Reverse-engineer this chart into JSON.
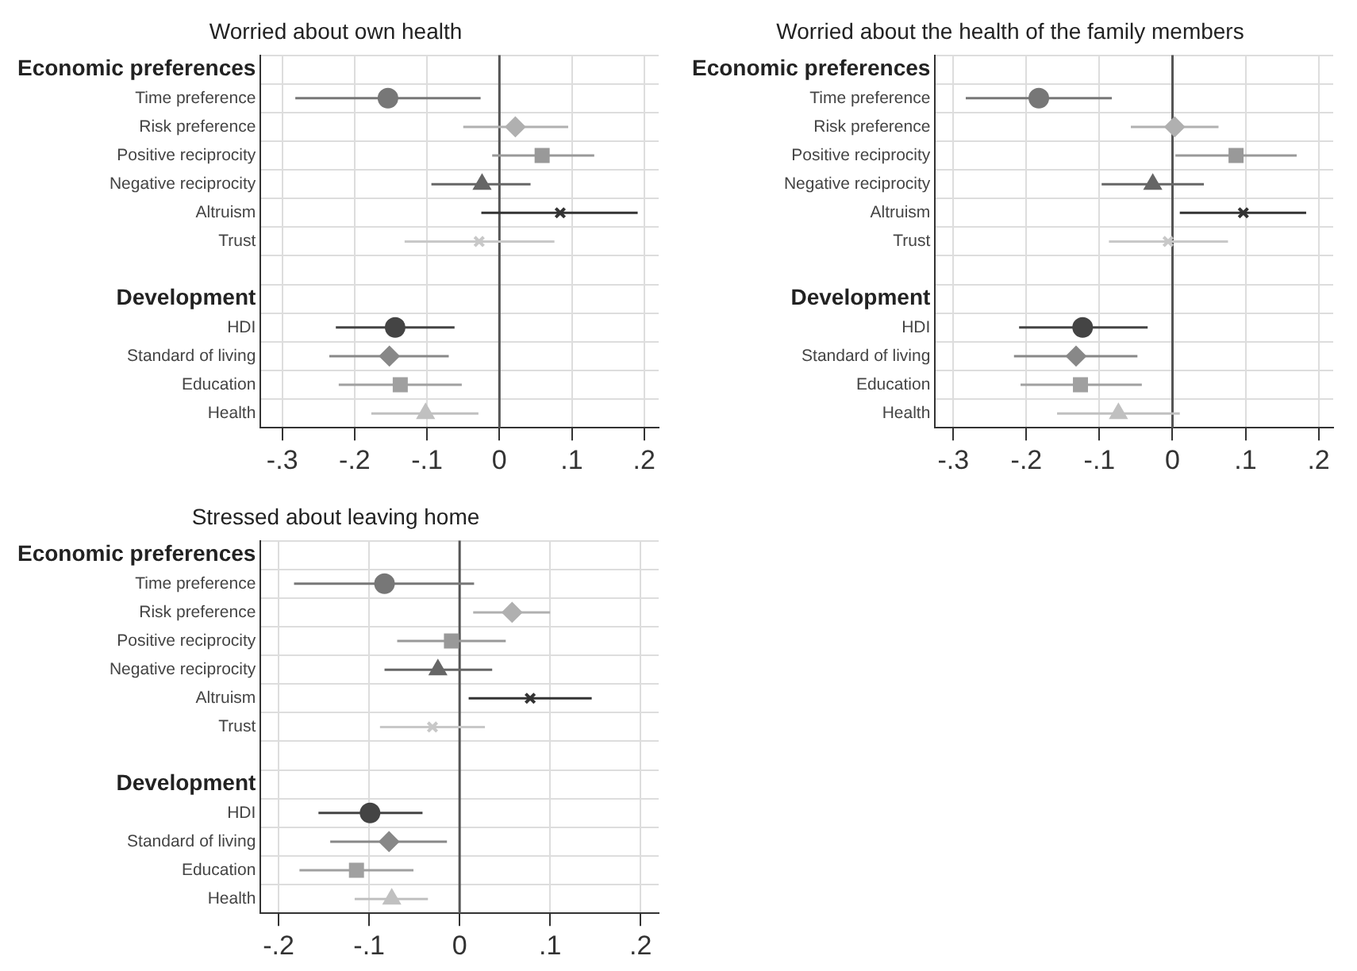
{
  "chart_data": [
    {
      "type": "scatter",
      "title": "Worried about own health",
      "orientation": "horizontal",
      "categories": [
        "Economic preferences",
        "Time preference",
        "Risk preference",
        "Positive reciprocity",
        "Negative reciprocity",
        "Altruism",
        "Trust",
        null,
        "Development",
        "HDI",
        "Standard of living",
        "Education",
        "Health"
      ],
      "xlim": [
        -0.33,
        0.22
      ],
      "xticks": [
        {
          "value": -0.3,
          "label": "-.3"
        },
        {
          "value": -0.2,
          "label": "-.2"
        },
        {
          "value": -0.1,
          "label": "-.1"
        },
        {
          "value": 0,
          "label": "0"
        },
        {
          "value": 0.1,
          "label": ".1"
        },
        {
          "value": 0.2,
          "label": ".2"
        }
      ],
      "grid": true,
      "legend": false,
      "ref_lines": [
        {
          "axis": "x",
          "value": 0,
          "color": "#555555"
        }
      ],
      "series": [
        {
          "color": "#777777",
          "marker": "circle",
          "values": [
            null,
            -0.154,
            null,
            null,
            null,
            null,
            null,
            null,
            null,
            null,
            null,
            null,
            null
          ],
          "errors": [
            null,
            [
              -0.282,
              -0.026
            ],
            null,
            null,
            null,
            null,
            null,
            null,
            null,
            null,
            null,
            null,
            null
          ]
        },
        {
          "color": "#b0b0b0",
          "marker": "diamond",
          "values": [
            null,
            null,
            0.022,
            null,
            null,
            null,
            null,
            null,
            null,
            null,
            null,
            null,
            null
          ],
          "errors": [
            null,
            null,
            [
              -0.05,
              0.095
            ],
            null,
            null,
            null,
            null,
            null,
            null,
            null,
            null,
            null,
            null
          ]
        },
        {
          "color": "#999999",
          "marker": "square",
          "values": [
            null,
            null,
            null,
            0.059,
            null,
            null,
            null,
            null,
            null,
            null,
            null,
            null,
            null
          ],
          "errors": [
            null,
            null,
            null,
            [
              -0.01,
              0.131
            ],
            null,
            null,
            null,
            null,
            null,
            null,
            null,
            null,
            null
          ]
        },
        {
          "color": "#666666",
          "marker": "triangle",
          "values": [
            null,
            null,
            null,
            null,
            -0.024,
            null,
            null,
            null,
            null,
            null,
            null,
            null,
            null
          ],
          "errors": [
            null,
            null,
            null,
            null,
            [
              -0.094,
              0.043
            ],
            null,
            null,
            null,
            null,
            null,
            null,
            null,
            null
          ]
        },
        {
          "color": "#333333",
          "marker": "cross",
          "values": [
            null,
            null,
            null,
            null,
            null,
            0.084,
            null,
            null,
            null,
            null,
            null,
            null,
            null
          ],
          "errors": [
            null,
            null,
            null,
            null,
            null,
            [
              -0.025,
              0.191
            ],
            null,
            null,
            null,
            null,
            null,
            null,
            null
          ]
        },
        {
          "color": "#c8c8c8",
          "marker": "cross",
          "values": [
            null,
            null,
            null,
            null,
            null,
            null,
            -0.028,
            null,
            null,
            null,
            null,
            null,
            null
          ],
          "errors": [
            null,
            null,
            null,
            null,
            null,
            null,
            [
              -0.131,
              0.076
            ],
            null,
            null,
            null,
            null,
            null,
            null
          ]
        },
        {
          "color": "#444444",
          "marker": "circle",
          "values": [
            null,
            null,
            null,
            null,
            null,
            null,
            null,
            null,
            null,
            -0.144,
            null,
            null,
            null
          ],
          "errors": [
            null,
            null,
            null,
            null,
            null,
            null,
            null,
            null,
            null,
            [
              -0.226,
              -0.062
            ],
            null,
            null,
            null
          ]
        },
        {
          "color": "#888888",
          "marker": "diamond",
          "values": [
            null,
            null,
            null,
            null,
            null,
            null,
            null,
            null,
            null,
            null,
            -0.152,
            null,
            null
          ],
          "errors": [
            null,
            null,
            null,
            null,
            null,
            null,
            null,
            null,
            null,
            null,
            [
              -0.235,
              -0.07
            ],
            null,
            null
          ]
        },
        {
          "color": "#a0a0a0",
          "marker": "square",
          "values": [
            null,
            null,
            null,
            null,
            null,
            null,
            null,
            null,
            null,
            null,
            null,
            -0.137,
            null
          ],
          "errors": [
            null,
            null,
            null,
            null,
            null,
            null,
            null,
            null,
            null,
            null,
            null,
            [
              -0.222,
              -0.052
            ],
            null
          ]
        },
        {
          "color": "#c0c0c0",
          "marker": "triangle",
          "values": [
            null,
            null,
            null,
            null,
            null,
            null,
            null,
            null,
            null,
            null,
            null,
            null,
            -0.102
          ],
          "errors": [
            null,
            null,
            null,
            null,
            null,
            null,
            null,
            null,
            null,
            null,
            null,
            null,
            [
              -0.177,
              -0.029
            ]
          ]
        }
      ]
    },
    {
      "type": "scatter",
      "title": "Worried about the health of the family members",
      "orientation": "horizontal",
      "categories": [
        "Economic preferences",
        "Time preference",
        "Risk preference",
        "Positive reciprocity",
        "Negative reciprocity",
        "Altruism",
        "Trust",
        null,
        "Development",
        "HDI",
        "Standard of living",
        "Education",
        "Health"
      ],
      "xlim": [
        -0.325,
        0.22
      ],
      "xticks": [
        {
          "value": -0.3,
          "label": "-.3"
        },
        {
          "value": -0.2,
          "label": "-.2"
        },
        {
          "value": -0.1,
          "label": "-.1"
        },
        {
          "value": 0,
          "label": "0"
        },
        {
          "value": 0.1,
          "label": ".1"
        },
        {
          "value": 0.2,
          "label": ".2"
        }
      ],
      "grid": true,
      "legend": false,
      "ref_lines": [
        {
          "axis": "x",
          "value": 0,
          "color": "#555555"
        }
      ],
      "series": [
        {
          "color": "#777777",
          "marker": "circle",
          "values": [
            null,
            -0.183,
            null,
            null,
            null,
            null,
            null,
            null,
            null,
            null,
            null,
            null,
            null
          ],
          "errors": [
            null,
            [
              -0.283,
              -0.083
            ],
            null,
            null,
            null,
            null,
            null,
            null,
            null,
            null,
            null,
            null,
            null
          ]
        },
        {
          "color": "#b0b0b0",
          "marker": "diamond",
          "values": [
            null,
            null,
            0.003,
            null,
            null,
            null,
            null,
            null,
            null,
            null,
            null,
            null,
            null
          ],
          "errors": [
            null,
            null,
            [
              -0.057,
              0.063
            ],
            null,
            null,
            null,
            null,
            null,
            null,
            null,
            null,
            null,
            null
          ]
        },
        {
          "color": "#999999",
          "marker": "square",
          "values": [
            null,
            null,
            null,
            0.087,
            null,
            null,
            null,
            null,
            null,
            null,
            null,
            null,
            null
          ],
          "errors": [
            null,
            null,
            null,
            [
              0.004,
              0.17
            ],
            null,
            null,
            null,
            null,
            null,
            null,
            null,
            null,
            null
          ]
        },
        {
          "color": "#666666",
          "marker": "triangle",
          "values": [
            null,
            null,
            null,
            null,
            -0.027,
            null,
            null,
            null,
            null,
            null,
            null,
            null,
            null
          ],
          "errors": [
            null,
            null,
            null,
            null,
            [
              -0.097,
              0.043
            ],
            null,
            null,
            null,
            null,
            null,
            null,
            null,
            null
          ]
        },
        {
          "color": "#333333",
          "marker": "cross",
          "values": [
            null,
            null,
            null,
            null,
            null,
            0.097,
            null,
            null,
            null,
            null,
            null,
            null,
            null
          ],
          "errors": [
            null,
            null,
            null,
            null,
            null,
            [
              0.01,
              0.183
            ],
            null,
            null,
            null,
            null,
            null,
            null,
            null
          ]
        },
        {
          "color": "#c8c8c8",
          "marker": "cross",
          "values": [
            null,
            null,
            null,
            null,
            null,
            null,
            -0.006,
            null,
            null,
            null,
            null,
            null,
            null
          ],
          "errors": [
            null,
            null,
            null,
            null,
            null,
            null,
            [
              -0.087,
              0.076
            ],
            null,
            null,
            null,
            null,
            null,
            null
          ]
        },
        {
          "color": "#444444",
          "marker": "circle",
          "values": [
            null,
            null,
            null,
            null,
            null,
            null,
            null,
            null,
            null,
            -0.123,
            null,
            null,
            null
          ],
          "errors": [
            null,
            null,
            null,
            null,
            null,
            null,
            null,
            null,
            null,
            [
              -0.21,
              -0.034
            ],
            null,
            null,
            null
          ]
        },
        {
          "color": "#888888",
          "marker": "diamond",
          "values": [
            null,
            null,
            null,
            null,
            null,
            null,
            null,
            null,
            null,
            null,
            -0.132,
            null,
            null
          ],
          "errors": [
            null,
            null,
            null,
            null,
            null,
            null,
            null,
            null,
            null,
            null,
            [
              -0.217,
              -0.048
            ],
            null,
            null
          ]
        },
        {
          "color": "#a0a0a0",
          "marker": "square",
          "values": [
            null,
            null,
            null,
            null,
            null,
            null,
            null,
            null,
            null,
            null,
            null,
            -0.126,
            null
          ],
          "errors": [
            null,
            null,
            null,
            null,
            null,
            null,
            null,
            null,
            null,
            null,
            null,
            [
              -0.208,
              -0.042
            ],
            null
          ]
        },
        {
          "color": "#c0c0c0",
          "marker": "triangle",
          "values": [
            null,
            null,
            null,
            null,
            null,
            null,
            null,
            null,
            null,
            null,
            null,
            null,
            -0.074
          ],
          "errors": [
            null,
            null,
            null,
            null,
            null,
            null,
            null,
            null,
            null,
            null,
            null,
            null,
            [
              -0.158,
              0.01
            ]
          ]
        }
      ]
    },
    {
      "type": "scatter",
      "title": "Stressed about leaving home",
      "orientation": "horizontal",
      "categories": [
        "Economic preferences",
        "Time preference",
        "Risk preference",
        "Positive reciprocity",
        "Negative reciprocity",
        "Altruism",
        "Trust",
        null,
        "Development",
        "HDI",
        "Standard of living",
        "Education",
        "Health"
      ],
      "xlim": [
        -0.22,
        0.22
      ],
      "xticks": [
        {
          "value": -0.2,
          "label": "-.2"
        },
        {
          "value": -0.1,
          "label": "-.1"
        },
        {
          "value": 0,
          "label": "0"
        },
        {
          "value": 0.1,
          "label": ".1"
        },
        {
          "value": 0.2,
          "label": ".2"
        }
      ],
      "grid": true,
      "legend": false,
      "ref_lines": [
        {
          "axis": "x",
          "value": 0,
          "color": "#555555"
        }
      ],
      "series": [
        {
          "color": "#777777",
          "marker": "circle",
          "values": [
            null,
            -0.083,
            null,
            null,
            null,
            null,
            null,
            null,
            null,
            null,
            null,
            null,
            null
          ],
          "errors": [
            null,
            [
              -0.183,
              0.016
            ],
            null,
            null,
            null,
            null,
            null,
            null,
            null,
            null,
            null,
            null,
            null
          ]
        },
        {
          "color": "#b0b0b0",
          "marker": "diamond",
          "values": [
            null,
            null,
            0.058,
            null,
            null,
            null,
            null,
            null,
            null,
            null,
            null,
            null,
            null
          ],
          "errors": [
            null,
            null,
            [
              0.015,
              0.1
            ],
            null,
            null,
            null,
            null,
            null,
            null,
            null,
            null,
            null,
            null
          ]
        },
        {
          "color": "#999999",
          "marker": "square",
          "values": [
            null,
            null,
            null,
            -0.009,
            null,
            null,
            null,
            null,
            null,
            null,
            null,
            null,
            null
          ],
          "errors": [
            null,
            null,
            null,
            [
              -0.069,
              0.051
            ],
            null,
            null,
            null,
            null,
            null,
            null,
            null,
            null,
            null
          ]
        },
        {
          "color": "#666666",
          "marker": "triangle",
          "values": [
            null,
            null,
            null,
            null,
            -0.024,
            null,
            null,
            null,
            null,
            null,
            null,
            null,
            null
          ],
          "errors": [
            null,
            null,
            null,
            null,
            [
              -0.083,
              0.036
            ],
            null,
            null,
            null,
            null,
            null,
            null,
            null,
            null
          ]
        },
        {
          "color": "#333333",
          "marker": "cross",
          "values": [
            null,
            null,
            null,
            null,
            null,
            0.078,
            null,
            null,
            null,
            null,
            null,
            null,
            null
          ],
          "errors": [
            null,
            null,
            null,
            null,
            null,
            [
              0.01,
              0.146
            ],
            null,
            null,
            null,
            null,
            null,
            null,
            null
          ]
        },
        {
          "color": "#c8c8c8",
          "marker": "cross",
          "values": [
            null,
            null,
            null,
            null,
            null,
            null,
            -0.03,
            null,
            null,
            null,
            null,
            null,
            null
          ],
          "errors": [
            null,
            null,
            null,
            null,
            null,
            null,
            [
              -0.088,
              0.028
            ],
            null,
            null,
            null,
            null,
            null,
            null
          ]
        },
        {
          "color": "#444444",
          "marker": "circle",
          "values": [
            null,
            null,
            null,
            null,
            null,
            null,
            null,
            null,
            null,
            -0.099,
            null,
            null,
            null
          ],
          "errors": [
            null,
            null,
            null,
            null,
            null,
            null,
            null,
            null,
            null,
            [
              -0.156,
              -0.041
            ],
            null,
            null,
            null
          ]
        },
        {
          "color": "#888888",
          "marker": "diamond",
          "values": [
            null,
            null,
            null,
            null,
            null,
            null,
            null,
            null,
            null,
            null,
            -0.078,
            null,
            null
          ],
          "errors": [
            null,
            null,
            null,
            null,
            null,
            null,
            null,
            null,
            null,
            null,
            [
              -0.143,
              -0.014
            ],
            null,
            null
          ]
        },
        {
          "color": "#a0a0a0",
          "marker": "square",
          "values": [
            null,
            null,
            null,
            null,
            null,
            null,
            null,
            null,
            null,
            null,
            null,
            -0.114,
            null
          ],
          "errors": [
            null,
            null,
            null,
            null,
            null,
            null,
            null,
            null,
            null,
            null,
            null,
            [
              -0.177,
              -0.051
            ],
            null
          ]
        },
        {
          "color": "#c0c0c0",
          "marker": "triangle",
          "values": [
            null,
            null,
            null,
            null,
            null,
            null,
            null,
            null,
            null,
            null,
            null,
            null,
            -0.075
          ],
          "errors": [
            null,
            null,
            null,
            null,
            null,
            null,
            null,
            null,
            null,
            null,
            null,
            null,
            [
              -0.116,
              -0.035
            ]
          ]
        }
      ]
    }
  ]
}
